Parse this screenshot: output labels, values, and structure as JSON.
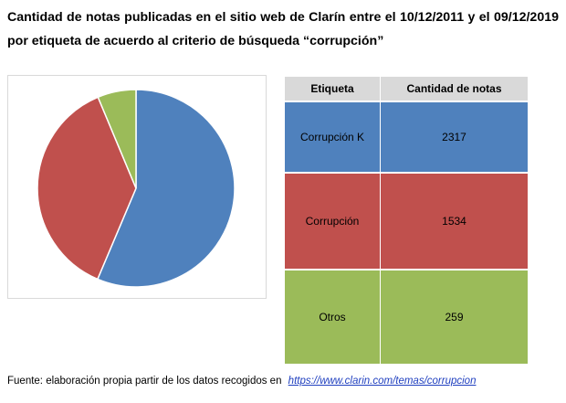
{
  "title": "Cantidad de notas publicadas en el sitio web de Clarín entre el 10/12/2011 y el 09/12/2019 por etiqueta de acuerdo al criterio de búsqueda “corrupción”",
  "chart_data": {
    "type": "pie",
    "categories": [
      "Corrupción K",
      "Corrupción",
      "Otros"
    ],
    "values": [
      2317,
      1534,
      259
    ],
    "colors": [
      "#4f81bd",
      "#c0504d",
      "#9bbb59"
    ],
    "start_angle": "top (12 o'clock), clockwise",
    "legend": "none"
  },
  "table": {
    "headers": [
      "Etiqueta",
      "Cantidad de notas"
    ],
    "rows": [
      {
        "label": "Corrupción K",
        "value": "2317",
        "color": "#4f81bd"
      },
      {
        "label": "Corrupción",
        "value": "1534",
        "color": "#c0504d"
      },
      {
        "label": "Otros",
        "value": "259",
        "color": "#9bbb59"
      }
    ]
  },
  "source": {
    "text": "Fuente: elaboración propia partir de los datos recogidos en",
    "link": "https://www.clarin.com/temas/corrupcion"
  }
}
